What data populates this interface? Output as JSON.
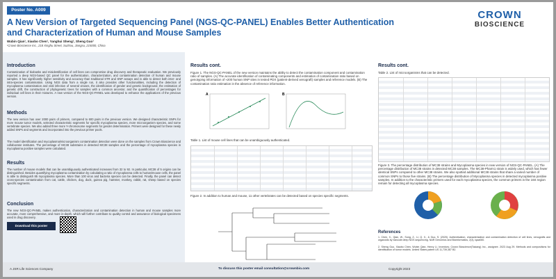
{
  "header": {
    "poster_no": "Poster No. A009",
    "title": "A New Version of Targeted Sequencing Panel (NGS-QC-PANEL) Enables Better Authentication and Characterization of Human and Mouse Samples",
    "authors": "Wubin Qian¹, Xiaobo Chen¹, Yanghui Sheng¹, Sheng Guo¹",
    "affiliation": "¹Crown Bioscience Inc., 218 Xinghu Street, Suzhou, Jiangsu, 215000, China",
    "logo_top": "CROWN",
    "logo_bottom": "BIOSCIENCE"
  },
  "left": {
    "intro_heading": "Introduction",
    "intro_text": "Contamination of biobanks and misidentification of cell lines can compromise drug discovery and therapeutic evaluation. We previously reported a deep NGS-based QC panel for the authentication, characterization, and contamination detection of human and mouse samples. It has significantly higher sensitivity and accuracy than traditional STR and SNP assays and is able to detect both inter- and intra-species contamination. Using NGS data from a single run, it also provides other functionalities, including the detection of mycoplasma contamination and viral infection of several viruses, the identification of gender and genetic background, the estimation of genetic drift, the construction of phylogenetic trees for samples with a common ancestor, and the quantification of percentages for individual cell lines in their mixtures. A new version of the NGS-QC-PANEL was developed to enhance the applications of the previous version.",
    "methods_heading": "Methods",
    "methods_text_1": "The new version has over 2000 pairs of primers, compared to 600 pairs in the previous version. We designed characteristic SNPs for more mouse tumor models, selected characteristic segments for specific mycoplasma species, more microorganism species, and some vertebrate species. We also added three more Y-chromosome segments for gender determination. Primers were designed for these newly added SNPs and segments and incorporated into the previous primer pools.",
    "methods_text_2": "The model identification and mycoplasma/microorganism contamination detection were done on the samples from Crown Bioscience and collaborator institutes. The percentage of MC38 substrains in detected MC38 samples and the percentage of mycoplasma species in mycoplasma positive samples were calculated.",
    "results_heading": "Results",
    "results_text": "The number of mouse models that can be unambiguously authenticated increases from 32 to 92. In particular, MC38 of 5 origins can be distinguished. Besides quantifying mycoplasma contamination by calculating a ratio of mycoplasma cells to human/mouse cells, the panel is able to distinguish 85 mycoplasma species. More than 100 virus and bacteria species can be detected. Finally, the panel can detect cross-species contamination from cat, cattle, chicken, dog, duck, guinea pig, hamster, monkey, rabbit, rat, sheep based on species specific segments.",
    "conclusion_heading": "Conclusion",
    "conclusion_text": "The new NGS-QC-PANEL makes authentication, characterization and contamination detection in human and mouse samples more accurate, more comprehensive, and more in-depth, which will further contribute to quality control and assurance of biological specimens used in drug discovery.",
    "download": "Download this poster"
  },
  "middle": {
    "heading": "Results cont.",
    "fig1_caption": "Figure 1. The NGS-QC-PANEL of the new version maintains the ability to detect the contamination component and contamination ratio of samples. (A) The accurate identification of contaminating components and estimation of contamination ratio based on genotyping information of ≈200 human SNP sites in tested PDX (patient-derived xenograft) samples and reference models. (B) The contamination ratio estimation in the absence of reference information.",
    "fig1_a": "A",
    "fig1_b": "B",
    "table1_caption": "Table 1. List of mouse cell lines that can be unambiguously authenticated.",
    "fig2_caption": "Figure 2. In addition to human and mouse, 11 other vertebrates can be detected based on species specific segments."
  },
  "right": {
    "heading": "Results cont.",
    "table2_caption": "Table 2. List of microorganisms that can be detected.",
    "fig3_caption": "Figure 3. The percentage distribution of MC38 strains and Mycoplasma species in new version of NGS-QC-PANEL. (A) The percentage distribution of MC38 strains in detected MC38 samples. The MC38-Pharm1 strain is widely used, which has fewer identical SNPs compared to other MC38 strains. We also spotted additional MC38 strains that share a varied number of common SNPs to those five strains. (B) The percentage distribution of Mycoplasma species in detected mycoplasma positive samples. In addition to the characteristic primers used for each mycoplasma species, the common primers in the 16S region remain for detecting all mycoplasma species.",
    "references_heading": "References",
    "ref_1": "1. Chen, X., Qian, W., Song, Z., Li, Q. X., & Guo, S. (2020). Authentication, characterization and contamination detection of cell lines, xenografts and organoids by barcode deep NGS sequencing. NAR Genomics and Bioinformatics, 2(3), lqaa060.",
    "ref_2": "2. Sheng Guo, Xiaobo Chen, Wubin Qian, Henry Li. Inventors; Crown Bioscience(Taicang) Inc., assignee. 2023 Aug 29. Methods and compositions for identification of tumor models. United States patent US 11,739,387 B2."
  },
  "footer": {
    "company": "A JSR Life Sciences Company",
    "contact": "To discuss this poster email consultation@crownbio.com",
    "copyright": "Copyright 2023"
  }
}
